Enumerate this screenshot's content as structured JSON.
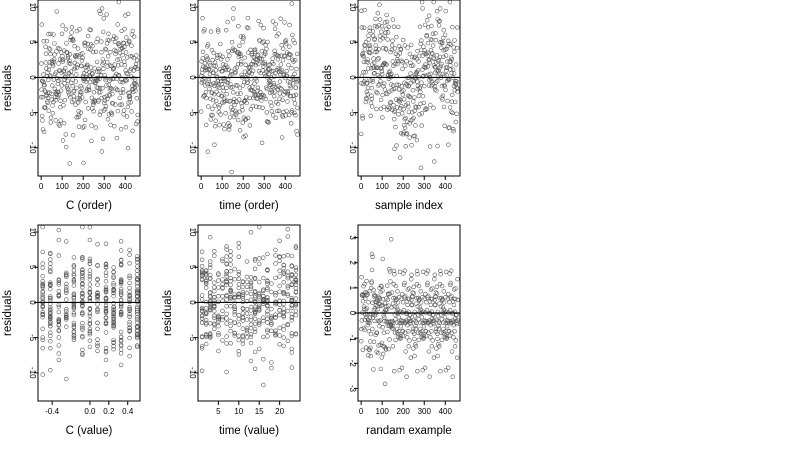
{
  "colors": {
    "points": "#555555",
    "axis": "#000000",
    "hline": "#000000"
  },
  "chart_data": [
    {
      "type": "scatter",
      "xlabel": "C (order)",
      "ylabel": "residuals",
      "xlim": [
        -15,
        470
      ],
      "ylim": [
        -14,
        11
      ],
      "xticks": [
        0,
        100,
        200,
        300,
        400
      ],
      "yticks": [
        -10,
        -5,
        0,
        5,
        10
      ],
      "hline": 0,
      "n": 460,
      "seed": 1,
      "spread": 4,
      "mode": "index"
    },
    {
      "type": "scatter",
      "xlabel": "time (order)",
      "ylabel": "residuals",
      "xlim": [
        -15,
        470
      ],
      "ylim": [
        -14,
        11
      ],
      "xticks": [
        0,
        100,
        200,
        300,
        400
      ],
      "yticks": [
        -10,
        -5,
        0,
        5,
        10
      ],
      "hline": 0,
      "n": 460,
      "seed": 2,
      "spread": 4,
      "mode": "index"
    },
    {
      "type": "scatter",
      "xlabel": "sample index",
      "ylabel": "residuals",
      "xlim": [
        -15,
        470
      ],
      "ylim": [
        -14,
        11
      ],
      "xticks": [
        0,
        100,
        200,
        300,
        400
      ],
      "yticks": [
        -10,
        -5,
        0,
        5,
        10
      ],
      "hline": 0,
      "n": 460,
      "seed": 3,
      "spread": 4,
      "mode": "wave"
    },
    {
      "type": "scatter",
      "xlabel": "C (value)",
      "ylabel": "residuals",
      "xlim": [
        -0.55,
        0.53
      ],
      "ylim": [
        -14,
        11
      ],
      "xticks": [
        -0.4,
        0.0,
        0.2,
        0.4
      ],
      "xticklabels": [
        "-0.4",
        "0.0",
        "0.2",
        "0.4"
      ],
      "yticks": [
        -10,
        -5,
        0,
        5,
        10
      ],
      "hline": 0,
      "n": 460,
      "seed": 4,
      "spread": 4,
      "mode": "discrete",
      "levels": [
        -0.5,
        -0.42,
        -0.33,
        -0.25,
        -0.17,
        -0.08,
        0.0,
        0.08,
        0.17,
        0.25,
        0.33,
        0.42,
        0.5
      ]
    },
    {
      "type": "scatter",
      "xlabel": "time (value)",
      "ylabel": "residuals",
      "xlim": [
        0,
        25
      ],
      "ylim": [
        -14,
        11
      ],
      "xticks": [
        5,
        10,
        15,
        20
      ],
      "yticks": [
        -10,
        -5,
        0,
        5,
        10
      ],
      "hline": 0,
      "n": 460,
      "seed": 5,
      "spread": 4,
      "mode": "discrete",
      "levels": [
        1,
        2,
        3,
        4,
        5,
        6,
        7,
        8,
        9,
        10,
        11,
        12,
        13,
        14,
        15,
        16,
        17,
        18,
        19,
        20,
        21,
        22,
        23,
        24
      ]
    },
    {
      "type": "scatter",
      "xlabel": "randam example",
      "ylabel": "residuals",
      "xlim": [
        -15,
        470
      ],
      "ylim": [
        -3.5,
        3.5
      ],
      "xticks": [
        0,
        100,
        200,
        300,
        400
      ],
      "yticks": [
        -3,
        -2,
        -1,
        0,
        1,
        2,
        3
      ],
      "hline": 0,
      "n": 460,
      "seed": 6,
      "spread": 1,
      "mode": "index"
    }
  ]
}
